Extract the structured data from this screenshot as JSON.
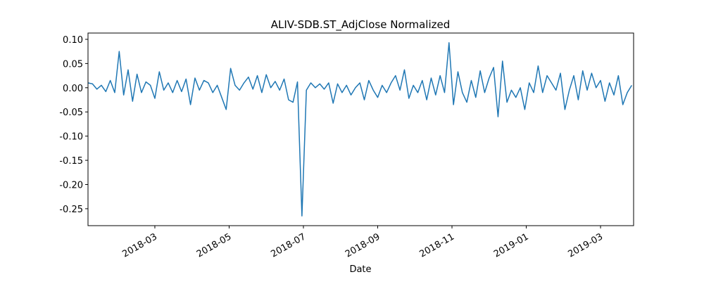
{
  "chart_data": {
    "type": "line",
    "title": "ALIV-SDB.ST_AdjClose Normalized",
    "x_label": "Date",
    "xlim": [
      0.2,
      14.89
    ],
    "xticks": [
      {
        "value": 2,
        "label": "2018-03"
      },
      {
        "value": 4,
        "label": "2018-05"
      },
      {
        "value": 6,
        "label": "2018-07"
      },
      {
        "value": 8,
        "label": "2018-09"
      },
      {
        "value": 10,
        "label": "2018-11"
      },
      {
        "value": 12,
        "label": "2019-01"
      },
      {
        "value": 14,
        "label": "2019-03"
      }
    ],
    "ylim": [
      -0.285,
      0.113
    ],
    "yticks": [
      {
        "value": 0.1,
        "label": "0.10"
      },
      {
        "value": 0.05,
        "label": "0.05"
      },
      {
        "value": 0,
        "label": "0.00"
      },
      {
        "value": -0.05,
        "label": "-0.05"
      },
      {
        "value": -0.1,
        "label": "-0.10"
      },
      {
        "value": -0.15,
        "label": "-0.15"
      },
      {
        "value": -0.2,
        "label": "-0.20"
      },
      {
        "value": -0.25,
        "label": "-0.25"
      }
    ],
    "grid": false,
    "series": [
      {
        "color": "#1f77b4",
        "x": [
          0.2,
          0.32,
          0.44,
          0.56,
          0.68,
          0.8,
          0.92,
          1.04,
          1.16,
          1.28,
          1.4,
          1.52,
          1.64,
          1.76,
          1.88,
          2,
          2.12,
          2.24,
          2.36,
          2.48,
          2.6,
          2.72,
          2.84,
          2.96,
          3.08,
          3.2,
          3.32,
          3.44,
          3.56,
          3.68,
          3.8,
          3.92,
          4.04,
          4.16,
          4.28,
          4.4,
          4.52,
          4.64,
          4.76,
          4.88,
          5,
          5.12,
          5.24,
          5.36,
          5.48,
          5.6,
          5.72,
          5.84,
          5.96,
          6.08,
          6.2,
          6.32,
          6.44,
          6.56,
          6.68,
          6.8,
          6.92,
          7.04,
          7.16,
          7.28,
          7.4,
          7.52,
          7.64,
          7.76,
          7.88,
          8,
          8.12,
          8.24,
          8.36,
          8.48,
          8.6,
          8.72,
          8.84,
          8.96,
          9.08,
          9.2,
          9.32,
          9.44,
          9.56,
          9.68,
          9.8,
          9.92,
          10.04,
          10.16,
          10.28,
          10.4,
          10.52,
          10.64,
          10.76,
          10.88,
          11,
          11.12,
          11.24,
          11.36,
          11.48,
          11.6,
          11.72,
          11.84,
          11.96,
          12.08,
          12.2,
          12.32,
          12.44,
          12.56,
          12.68,
          12.8,
          12.92,
          13.04,
          13.16,
          13.28,
          13.4,
          13.52,
          13.64,
          13.76,
          13.88,
          14,
          14.12,
          14.24,
          14.36,
          14.48,
          14.6,
          14.72,
          14.84
        ],
        "values": [
          0.01,
          0.008,
          -0.003,
          0.005,
          -0.008,
          0.015,
          -0.01,
          0.075,
          -0.015,
          0.037,
          -0.028,
          0.028,
          -0.01,
          0.012,
          0.005,
          -0.022,
          0.033,
          -0.005,
          0.01,
          -0.01,
          0.015,
          -0.008,
          0.018,
          -0.035,
          0.02,
          -0.005,
          0.015,
          0.01,
          -0.01,
          0.005,
          -0.02,
          -0.045,
          0.04,
          0.005,
          -0.005,
          0.01,
          0.022,
          -0.003,
          0.025,
          -0.01,
          0.027,
          0.0,
          0.013,
          -0.005,
          0.018,
          -0.025,
          -0.03,
          0.012,
          -0.265,
          -0.005,
          0.01,
          0.0,
          0.008,
          -0.003,
          0.01,
          -0.032,
          0.008,
          -0.01,
          0.005,
          -0.015,
          0.0,
          0.01,
          -0.025,
          0.015,
          -0.005,
          -0.02,
          0.005,
          -0.01,
          0.01,
          0.025,
          -0.005,
          0.037,
          -0.022,
          0.005,
          -0.01,
          0.015,
          -0.025,
          0.02,
          -0.015,
          0.025,
          -0.01,
          0.093,
          -0.035,
          0.033,
          -0.01,
          -0.03,
          0.015,
          -0.02,
          0.035,
          -0.01,
          0.02,
          0.042,
          -0.06,
          0.055,
          -0.03,
          -0.005,
          -0.02,
          0.0,
          -0.045,
          0.01,
          -0.01,
          0.045,
          -0.01,
          0.025,
          0.01,
          -0.005,
          0.03,
          -0.045,
          -0.005,
          0.025,
          -0.025,
          0.035,
          -0.005,
          0.03,
          0.0,
          0.015,
          -0.028,
          0.01,
          -0.015,
          0.025,
          -0.035,
          -0.01,
          0.005
        ]
      }
    ]
  }
}
